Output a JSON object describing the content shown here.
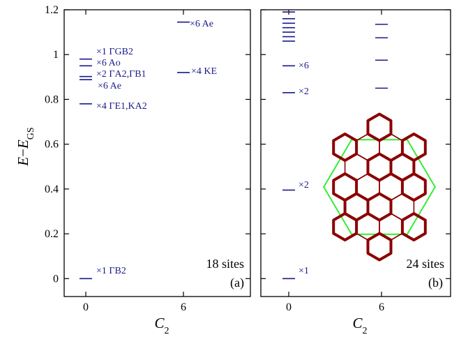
{
  "chart_data": [
    {
      "type": "scatter",
      "panel": "(a)",
      "sites_label": "18 sites",
      "xlabel": "C2",
      "ylabel": "E-EGS",
      "x_ticks": [
        "0",
        "6"
      ],
      "y_ticks": [
        "0",
        "0.2",
        "0.4",
        "0.6",
        "0.8",
        "1",
        "1.2"
      ],
      "ylim": [
        -0.08,
        1.2
      ],
      "level_color": "#1a1a8c",
      "levels": [
        {
          "x": 0,
          "y": 0.0,
          "annotation": "×1 ΓB2"
        },
        {
          "x": 0,
          "y": 0.78,
          "annotation": "×4 ΓE1,KA2"
        },
        {
          "x": 0,
          "y": 0.888,
          "annotation": "×6 Ae"
        },
        {
          "x": 0,
          "y": 0.902,
          "annotation": "×2 ΓA2,ΓB1"
        },
        {
          "x": 0,
          "y": 0.95,
          "annotation": "×6 Ao"
        },
        {
          "x": 0,
          "y": 0.98,
          "annotation": "×1 ΓGB2"
        },
        {
          "x": 6,
          "y": 0.92,
          "annotation": "×4 KE"
        },
        {
          "x": 6,
          "y": 1.145,
          "annotation": "×6 Ae"
        }
      ]
    },
    {
      "type": "scatter",
      "panel": "(b)",
      "sites_label": "24 sites",
      "xlabel": "C2",
      "x_ticks": [
        "0",
        "6"
      ],
      "ylim": [
        -0.08,
        1.2
      ],
      "level_color": "#1a1a8c",
      "levels": [
        {
          "x": 0,
          "y": 0.0,
          "annotation": "×1"
        },
        {
          "x": 0,
          "y": 0.395,
          "annotation": "×2"
        },
        {
          "x": 0,
          "y": 0.83,
          "annotation": "×2"
        },
        {
          "x": 0,
          "y": 0.95,
          "annotation": "×6"
        },
        {
          "x": 0,
          "y": 1.06,
          "annotation": ""
        },
        {
          "x": 0,
          "y": 1.08,
          "annotation": ""
        },
        {
          "x": 0,
          "y": 1.1,
          "annotation": ""
        },
        {
          "x": 0,
          "y": 1.12,
          "annotation": ""
        },
        {
          "x": 0,
          "y": 1.14,
          "annotation": ""
        },
        {
          "x": 0,
          "y": 1.16,
          "annotation": ""
        },
        {
          "x": 0,
          "y": 1.19,
          "annotation": ""
        },
        {
          "x": 6,
          "y": 0.85,
          "annotation": ""
        },
        {
          "x": 6,
          "y": 0.975,
          "annotation": ""
        },
        {
          "x": 6,
          "y": 1.075,
          "annotation": ""
        },
        {
          "x": 6,
          "y": 1.135,
          "annotation": ""
        }
      ],
      "inset": {
        "description_colors": {
          "lattice": "#8b0000",
          "cell_boundary": "#33ee33"
        }
      }
    }
  ]
}
